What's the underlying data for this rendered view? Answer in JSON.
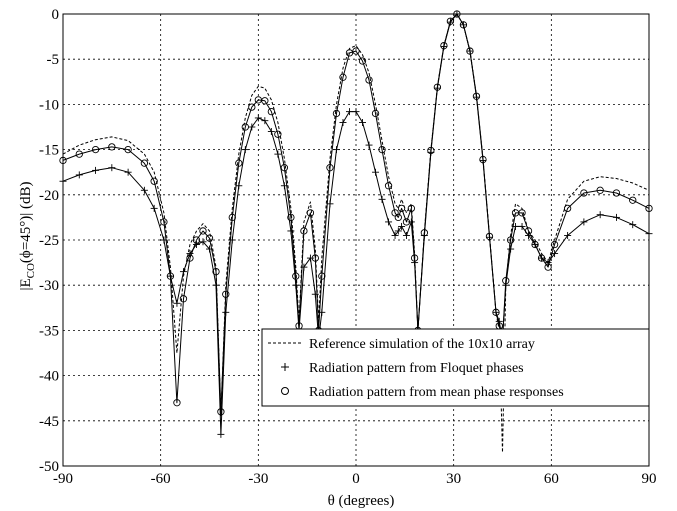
{
  "chart_data": {
    "type": "line",
    "title": "",
    "xlabel": "θ (degrees)",
    "ylabel_main": "|E",
    "ylabel_sub": "CO",
    "ylabel_rest": "(ϕ=45°)| (dB)",
    "xlim": [
      -90,
      90
    ],
    "ylim": [
      -50,
      0
    ],
    "xticks": [
      -90,
      -60,
      -30,
      0,
      30,
      60,
      90
    ],
    "yticks": [
      0,
      -5,
      -10,
      -15,
      -20,
      -25,
      -30,
      -35,
      -40,
      -45,
      -50
    ],
    "xtick_labels": [
      "-90",
      "-60",
      "-30",
      "0",
      "30",
      "60",
      "90"
    ],
    "ytick_labels": [
      "0",
      "-5",
      "-10",
      "-15",
      "-20",
      "-25",
      "-30",
      "-35",
      "-40",
      "-45",
      "-50"
    ],
    "grid": "dotted, on",
    "legend_position": "bottom-right",
    "series": [
      {
        "name": "Reference simulation of the 10x10 array",
        "style": "dashed",
        "marker": "none",
        "x": [
          -90,
          -85,
          -80,
          -75,
          -70,
          -65,
          -62,
          -59,
          -57,
          -55,
          -53,
          -51,
          -49,
          -47,
          -45,
          -43,
          -41.5,
          -40,
          -38,
          -36,
          -34,
          -32,
          -30,
          -28,
          -26,
          -24,
          -22,
          -20,
          -18.5,
          -17.5,
          -16,
          -14,
          -12.5,
          -11.5,
          -10.5,
          -8,
          -6,
          -4,
          -2,
          0,
          2,
          4,
          6,
          8,
          10,
          12,
          13,
          14,
          15.5,
          17,
          18,
          19,
          21,
          23,
          25,
          27,
          29,
          31,
          33,
          35,
          37,
          39,
          41,
          43,
          44,
          45,
          46,
          47.5,
          49,
          51,
          53,
          55,
          57,
          59,
          61,
          65,
          70,
          75,
          80,
          85,
          90
        ],
        "y": [
          -15.5,
          -14.5,
          -13.9,
          -13.6,
          -14,
          -15.5,
          -17.5,
          -22,
          -28,
          -37.5,
          -29,
          -25.5,
          -24,
          -23.2,
          -24,
          -28,
          -44.5,
          -30,
          -21.5,
          -15.5,
          -11.5,
          -9,
          -8,
          -8.2,
          -9.5,
          -12,
          -16,
          -21.5,
          -28,
          -34,
          -23,
          -20.8,
          -26,
          -34,
          -27,
          -16,
          -10,
          -6,
          -3.8,
          -3.5,
          -4.5,
          -6.5,
          -10,
          -14,
          -18,
          -21,
          -21.5,
          -20.5,
          -22,
          -21,
          -26.5,
          -35,
          -24,
          -15,
          -8,
          -3.5,
          -0.8,
          0,
          -1.2,
          -4,
          -9,
          -16,
          -24.5,
          -33,
          -35,
          -48.5,
          -30,
          -24.5,
          -21,
          -21.5,
          -24,
          -25,
          -26.5,
          -27.5,
          -25,
          -20.5,
          -18.5,
          -18,
          -18.2,
          -18.7,
          -19.5
        ]
      },
      {
        "name": "Radiation pattern from Floquet phases",
        "style": "solid",
        "marker": "plus",
        "x": [
          -90,
          -85,
          -80,
          -75,
          -70,
          -65,
          -62,
          -59,
          -57,
          -55,
          -53,
          -51,
          -49,
          -47,
          -45,
          -43,
          -41.5,
          -40,
          -38,
          -36,
          -34,
          -32,
          -30,
          -28,
          -26,
          -24,
          -22,
          -20,
          -18.5,
          -17.5,
          -16,
          -14,
          -12.5,
          -11.5,
          -10.5,
          -8,
          -6,
          -4,
          -2,
          0,
          2,
          4,
          6,
          8,
          10,
          12,
          13,
          14,
          15.5,
          17,
          18,
          19,
          21,
          23,
          25,
          27,
          29,
          31,
          33,
          35,
          37,
          39,
          41,
          43,
          44,
          45,
          46,
          47.5,
          49,
          51,
          53,
          55,
          57,
          59,
          61,
          65,
          70,
          75,
          80,
          85,
          90
        ],
        "y": [
          -18.5,
          -17.8,
          -17.3,
          -17,
          -17.5,
          -19.5,
          -21.5,
          -25,
          -29,
          -32,
          -28.5,
          -26.5,
          -25.5,
          -25.2,
          -26,
          -30,
          -46.5,
          -33,
          -25,
          -19,
          -15,
          -12.5,
          -11.5,
          -11.8,
          -13,
          -15.5,
          -19,
          -24,
          -30,
          -35,
          -28,
          -27,
          -31,
          -36,
          -33,
          -21,
          -15,
          -12,
          -10.8,
          -10.8,
          -12,
          -14.5,
          -17.5,
          -20.5,
          -23,
          -24.5,
          -24,
          -23.5,
          -24.5,
          -23,
          -27.5,
          -35,
          -24.5,
          -15.3,
          -8.2,
          -3.6,
          -0.9,
          0,
          -1.2,
          -4.1,
          -9.2,
          -16.2,
          -24.7,
          -33,
          -34,
          -36,
          -30,
          -26,
          -23.5,
          -23.5,
          -24.5,
          -25.5,
          -27,
          -27.5,
          -26.5,
          -24.5,
          -23,
          -22.2,
          -22.5,
          -23.3,
          -24.3
        ]
      },
      {
        "name": "Radiation pattern from mean phase responses",
        "style": "solid",
        "marker": "circle",
        "x": [
          -90,
          -85,
          -80,
          -75,
          -70,
          -65,
          -62,
          -59,
          -57,
          -55,
          -53,
          -51,
          -49,
          -47,
          -45,
          -43,
          -41.5,
          -40,
          -38,
          -36,
          -34,
          -32,
          -30,
          -28,
          -26,
          -24,
          -22,
          -20,
          -18.5,
          -17.5,
          -16,
          -14,
          -12.5,
          -11.5,
          -10.5,
          -8,
          -6,
          -4,
          -2,
          0,
          2,
          4,
          6,
          8,
          10,
          12,
          13,
          14,
          15.5,
          17,
          18,
          19,
          21,
          23,
          25,
          27,
          29,
          31,
          33,
          35,
          37,
          39,
          41,
          43,
          44,
          45,
          46,
          47.5,
          49,
          51,
          53,
          55,
          57,
          59,
          61,
          65,
          70,
          75,
          80,
          85,
          90
        ],
        "y": [
          -16.2,
          -15.5,
          -15,
          -14.7,
          -15,
          -16.5,
          -18.5,
          -23,
          -29,
          -43,
          -31.5,
          -27,
          -25,
          -24,
          -24.8,
          -28.5,
          -44,
          -31,
          -22.5,
          -16.5,
          -12.5,
          -10.3,
          -9.5,
          -9.6,
          -10.8,
          -13.3,
          -17,
          -22.5,
          -29,
          -34.5,
          -24,
          -22,
          -27,
          -35,
          -29,
          -17,
          -11,
          -7,
          -4.3,
          -4.1,
          -5.2,
          -7.3,
          -11,
          -15,
          -19,
          -22,
          -22.5,
          -21.5,
          -23,
          -21.5,
          -27,
          -35,
          -24.2,
          -15.1,
          -8.1,
          -3.5,
          -0.8,
          0,
          -1.2,
          -4.1,
          -9.1,
          -16.1,
          -24.6,
          -33,
          -34.5,
          -36,
          -29.5,
          -25,
          -22,
          -22,
          -24,
          -25.5,
          -27,
          -28,
          -25.5,
          -21.5,
          -19.8,
          -19.5,
          -19.8,
          -20.6,
          -21.5
        ]
      }
    ]
  }
}
